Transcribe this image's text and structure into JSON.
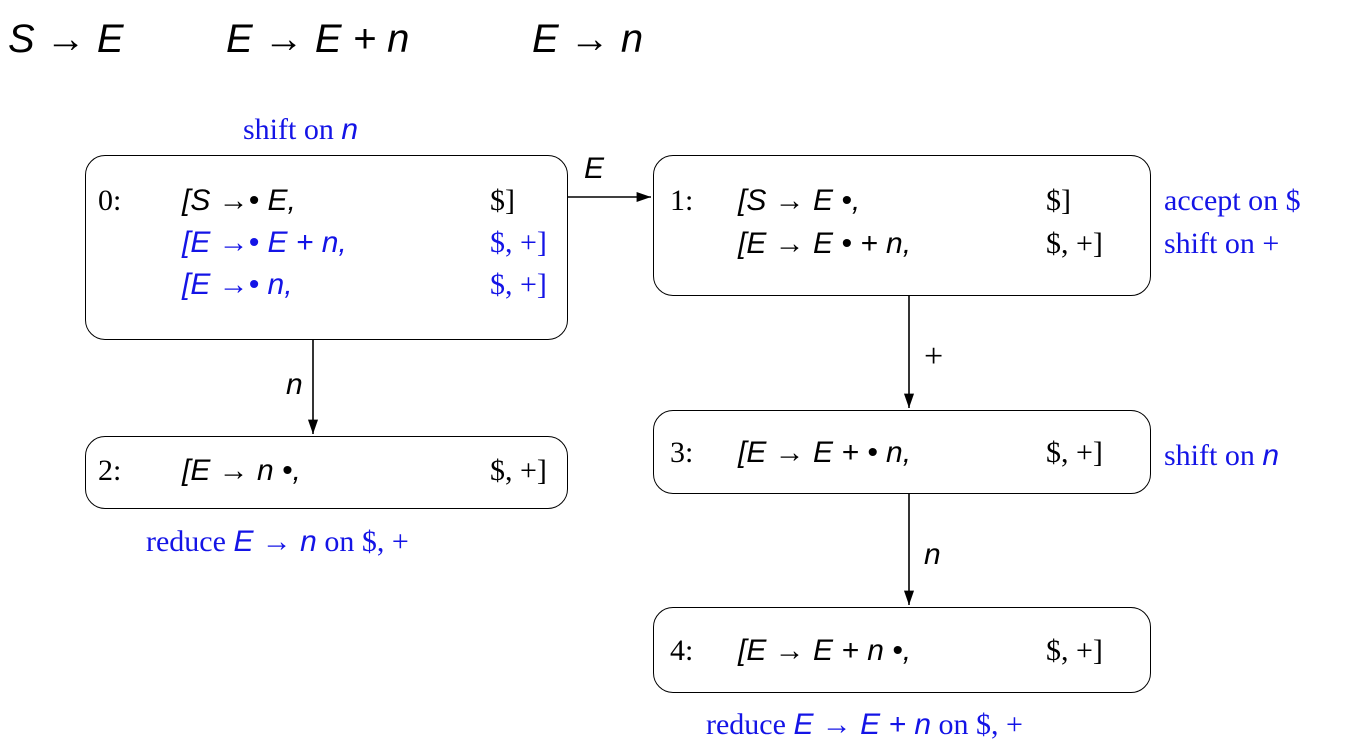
{
  "grammar": {
    "rule1": "S → E",
    "rule2": "E → E + n",
    "rule3": "E → n"
  },
  "colors": {
    "text": "#000000",
    "highlight": "#1414e6"
  },
  "states": [
    {
      "id": "0:",
      "items": [
        {
          "rule": "[S →• E,",
          "lookahead": "$]"
        },
        {
          "rule": "[E →• E  +  n,",
          "lookahead": "$, +]"
        },
        {
          "rule": "[E →• n,",
          "lookahead": "$, +]"
        }
      ],
      "action_word": "shift on",
      "action_sym": "n"
    },
    {
      "id": "1:",
      "items": [
        {
          "rule": "[S → E •,",
          "lookahead": "$]"
        },
        {
          "rule": "[E → E • + n,",
          "lookahead": "$, +]"
        }
      ],
      "action_1": "accept on $",
      "action_2": "shift on +"
    },
    {
      "id": "2:",
      "items": [
        {
          "rule": "[E → n •,",
          "lookahead": "$, +]"
        }
      ],
      "action_word": "reduce",
      "action_rule": "E → n",
      "action_tail": "on $, +"
    },
    {
      "id": "3:",
      "items": [
        {
          "rule": "[E → E + • n,",
          "lookahead": "$, +]"
        }
      ],
      "action_word": "shift on",
      "action_sym": "n"
    },
    {
      "id": "4:",
      "items": [
        {
          "rule": "[E → E  +  n •,",
          "lookahead": "$, +]"
        }
      ],
      "action_word": "reduce",
      "action_rule": "E → E + n",
      "action_tail": "on $, +"
    }
  ],
  "transitions": [
    {
      "from": "0:",
      "to": "1:",
      "label": "E"
    },
    {
      "from": "0:",
      "to": "2:",
      "label": "n"
    },
    {
      "from": "1:",
      "to": "3:",
      "label": "+"
    },
    {
      "from": "3:",
      "to": "4:",
      "label": "n"
    }
  ]
}
